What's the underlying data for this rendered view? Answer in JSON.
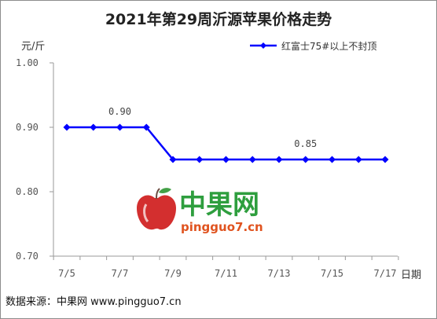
{
  "chart_data": {
    "type": "line",
    "title": "2021年第29周沂源苹果价格走势",
    "ylabel": "元/斤",
    "xlabel": "日期",
    "ylim": [
      0.7,
      1.0
    ],
    "yticks": [
      "0.70",
      "0.80",
      "0.90",
      "1.00"
    ],
    "categories": [
      "7/5",
      "7/6",
      "7/7",
      "7/8",
      "7/9",
      "7/10",
      "7/11",
      "7/12",
      "7/13",
      "7/14",
      "7/15",
      "7/16",
      "7/17"
    ],
    "xtick_labels": [
      "7/5",
      "7/7",
      "7/9",
      "7/11",
      "7/13",
      "7/15",
      "7/17"
    ],
    "series": [
      {
        "name": "红富士75#以上不封顶",
        "values": [
          0.9,
          0.9,
          0.9,
          0.9,
          0.85,
          0.85,
          0.85,
          0.85,
          0.85,
          0.85,
          0.85,
          0.85,
          0.85
        ]
      }
    ],
    "annotations": [
      {
        "index": 2,
        "text": "0.90"
      },
      {
        "index": 9,
        "text": "0.85"
      }
    ],
    "line_color": "#0000ff",
    "grid": false,
    "legend_position": "top-right"
  },
  "watermark": {
    "cn": "中果网",
    "en": "pingguo7.cn"
  },
  "footer": "数据来源：中果网 www.pingguo7.cn"
}
